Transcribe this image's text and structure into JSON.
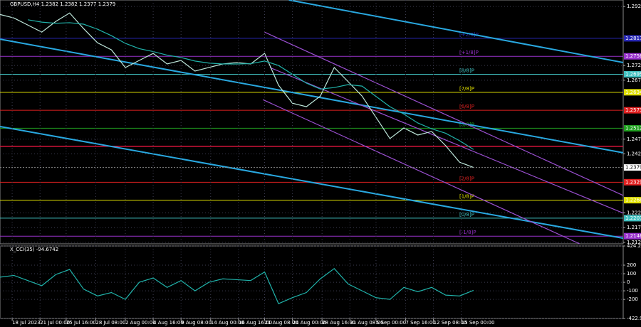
{
  "chart_data": [
    {
      "type": "line",
      "title": "GBPUSD,H4  1.2382 1.2382 1.2377 1.2379",
      "x": [
        0,
        8,
        16,
        24,
        32,
        40,
        48,
        56,
        64,
        72,
        80,
        88,
        96,
        104,
        112,
        120,
        128,
        136,
        144,
        152,
        160,
        168,
        176,
        184,
        192,
        200,
        208,
        216,
        224,
        232,
        240,
        248,
        256,
        264,
        272
      ],
      "series": [
        {
          "color": "#bfe8dc",
          "values": [
            1.2898,
            1.2886,
            1.2862,
            1.2838,
            1.2874,
            1.2903,
            1.285,
            1.2802,
            1.2778,
            1.2718,
            1.2742,
            1.2766,
            1.273,
            1.2742,
            1.2706,
            1.2718,
            1.273,
            1.2735,
            1.273,
            1.2766,
            1.2658,
            1.2597,
            1.2585,
            1.2621,
            1.2718,
            1.267,
            1.2621,
            1.2549,
            1.2477,
            1.2513,
            1.2489,
            1.2501,
            1.2453,
            1.2397,
            1.2379
          ]
        },
        {
          "color": "#20b2aa",
          "values": [
            null,
            null,
            1.288,
            1.2872,
            1.2868,
            1.287,
            1.2865,
            1.2848,
            1.2826,
            1.28,
            1.2782,
            1.2772,
            1.276,
            1.2752,
            1.274,
            1.2733,
            1.273,
            1.273,
            1.2731,
            1.274,
            1.2725,
            1.2695,
            1.2665,
            1.2645,
            1.265,
            1.266,
            1.2655,
            1.262,
            1.2585,
            1.256,
            1.253,
            1.251,
            1.2495,
            1.247,
            1.244
          ]
        }
      ],
      "xlim": [
        0,
        358
      ],
      "ylim": [
        1.212,
        1.2947
      ],
      "yticks": [
        1.2925,
        1.2725,
        1.2675,
        1.2475,
        1.2425,
        1.2225,
        1.2175,
        1.2125
      ],
      "grid": true,
      "last_price": 1.2379,
      "levels": [
        {
          "label": "[+2/8]P",
          "value": 1.2817,
          "color": "#2828b4"
        },
        {
          "label": "[+1/8]P",
          "value": 1.2756,
          "color": "#9932cc"
        },
        {
          "label": "[8/8]P",
          "value": 1.2695,
          "color": "#40c0c0"
        },
        {
          "label": "[7/8]P",
          "value": 1.2634,
          "color": "#e0e000"
        },
        {
          "label": "[6/8]P",
          "value": 1.2573,
          "color": "#e02020"
        },
        {
          "label": "[5/8]P",
          "value": 1.2512,
          "color": "#20a020"
        },
        {
          "value": 1.2451,
          "color": "#dc143c"
        },
        {
          "label": "[2/8]P",
          "value": 1.2329,
          "color": "#e02020"
        },
        {
          "label": "[1/8]P",
          "value": 1.2268,
          "color": "#e0e000"
        },
        {
          "label": "[0/8]P",
          "value": 1.2207,
          "color": "#40c0c0"
        },
        {
          "label": "[-1/8]P",
          "value": 1.2146,
          "color": "#9932cc"
        }
      ],
      "trendlines": [
        {
          "x": [
            166,
            358
          ],
          "y": [
            1.2947,
            1.2735
          ],
          "color": "#29a8e0"
        },
        {
          "x": [
            0,
            358
          ],
          "y": [
            1.2814,
            1.2429
          ],
          "color": "#29a8e0"
        },
        {
          "x": [
            0,
            358
          ],
          "y": [
            1.2518,
            1.2139
          ],
          "color": "#29a8e0"
        },
        {
          "x": [
            152,
            358
          ],
          "y": [
            1.2838,
            1.2284
          ],
          "color": "#9a4fd0"
        },
        {
          "x": [
            155,
            358
          ],
          "y": [
            1.2718,
            1.2224
          ],
          "color": "#9a4fd0"
        },
        {
          "x": [
            151,
            333
          ],
          "y": [
            1.2609,
            1.212
          ],
          "color": "#9a4fd0"
        }
      ]
    },
    {
      "type": "line",
      "title": "X_CCI(35) -94.6742",
      "x": [
        0,
        8,
        16,
        24,
        32,
        40,
        48,
        56,
        64,
        72,
        80,
        88,
        96,
        104,
        112,
        120,
        128,
        136,
        144,
        152,
        160,
        168,
        176,
        184,
        192,
        200,
        208,
        216,
        224,
        232,
        240,
        248,
        256,
        264,
        272
      ],
      "series": [
        {
          "color": "#20b2aa",
          "values": [
            60,
            80,
            20,
            -40,
            90,
            150,
            -80,
            -160,
            -120,
            -200,
            0,
            50,
            -60,
            20,
            -100,
            0,
            40,
            30,
            20,
            120,
            -250,
            -180,
            -120,
            40,
            160,
            -20,
            -100,
            -180,
            -200,
            -60,
            -110,
            -60,
            -150,
            -160,
            -94.6742
          ]
        }
      ],
      "xlim": [
        0,
        358
      ],
      "ylim": [
        -422.9968,
        424.2183
      ],
      "yticks": [
        424.2183,
        200,
        100,
        0,
        -100,
        -200,
        -422.9968
      ],
      "xticks": [
        {
          "value": 7,
          "label": "18 Jul 2023"
        },
        {
          "value": 23,
          "label": "21 Jul 00:00"
        },
        {
          "value": 38,
          "label": "25 Jul 16:00"
        },
        {
          "value": 55,
          "label": "28 Jul 08:00"
        },
        {
          "value": 72,
          "label": "2 Aug 00:00"
        },
        {
          "value": 88,
          "label": "4 Aug 16:00"
        },
        {
          "value": 104,
          "label": "9 Aug 08:00"
        },
        {
          "value": 121,
          "label": "14 Aug 00:00"
        },
        {
          "value": 137,
          "label": "16 Aug 16:00"
        },
        {
          "value": 152,
          "label": "21 Aug 08:00"
        },
        {
          "value": 168,
          "label": "24 Aug 00:00"
        },
        {
          "value": 185,
          "label": "28 Aug 16:00"
        },
        {
          "value": 201,
          "label": "31 Aug 08:00"
        },
        {
          "value": 216,
          "label": "5 Sep 00:00"
        },
        {
          "value": 233,
          "label": "7 Sep 16:00"
        },
        {
          "value": 249,
          "label": "12 Sep 08:00"
        },
        {
          "value": 265,
          "label": "15 Sep 00:00"
        }
      ],
      "grid": true
    }
  ]
}
